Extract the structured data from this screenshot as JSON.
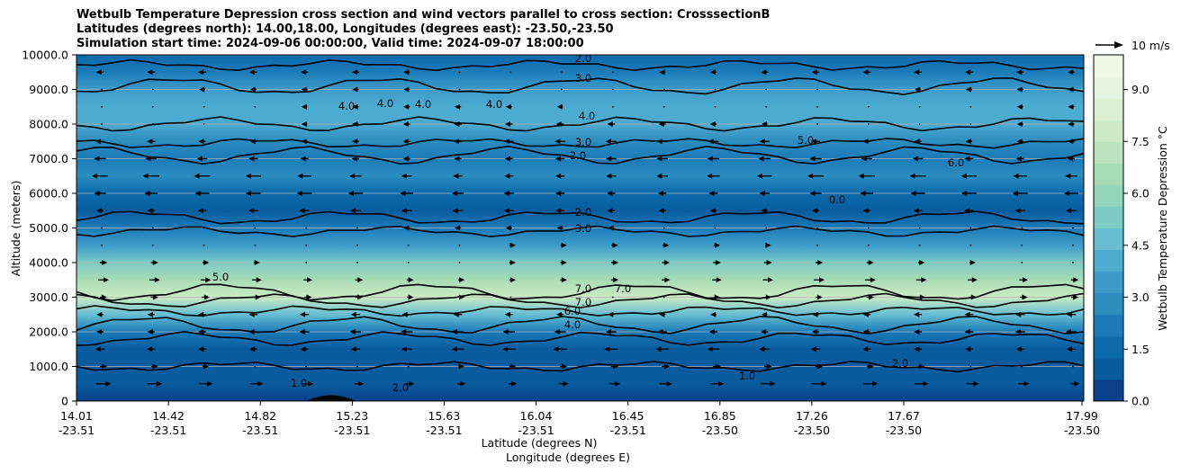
{
  "chart_data": {
    "type": "contour",
    "title_lines": [
      "Wetbulb Temperature Depression cross section and wind vectors parallel to cross section: CrosssectionB",
      "Latitudes (degrees north): 14.00,18.00, Longitudes (degrees east): -23.50,-23.50",
      "Simulation start time: 2024-09-06 00:00:00, Valid time: 2024-09-07 18:00:00"
    ],
    "ylabel": "Altitude (meters)",
    "xlabel_lat": "Latitude (degrees N)",
    "xlabel_lon": "Longitude (degrees E)",
    "ylim": [
      0,
      10000
    ],
    "yticks": [
      "0",
      "1000.0",
      "2000.0",
      "3000.0",
      "4000.0",
      "5000.0",
      "6000.0",
      "7000.0",
      "8000.0",
      "9000.0",
      "10000.0"
    ],
    "xticks_lat": [
      "14.01",
      "14.42",
      "14.82",
      "15.23",
      "15.63",
      "16.04",
      "16.45",
      "16.85",
      "17.26",
      "17.67",
      "17.99"
    ],
    "xticks_lon": [
      "-23.51",
      "-23.51",
      "-23.51",
      "-23.51",
      "-23.51",
      "-23.51",
      "-23.51",
      "-23.50",
      "-23.50",
      "-23.50",
      "-23.50"
    ],
    "colorbar": {
      "label": "Wetbulb Temperature Depression °C",
      "ticks": [
        "0.0",
        "1.5",
        "3.0",
        "4.5",
        "6.0",
        "7.5",
        "9.0"
      ],
      "range": [
        0,
        10
      ],
      "colors": [
        "#08408a",
        "#085c9e",
        "#0b6aab",
        "#1b7bb8",
        "#2b8cbe",
        "#3d9bc8",
        "#4eabd0",
        "#67bdd2",
        "#7ccbc4",
        "#92d4bc",
        "#a8dcb5",
        "#bae4bc",
        "#cbebc5",
        "#d9f0d3",
        "#e6f5e1",
        "#f0f9e8"
      ]
    },
    "wind_key_label": "10 m/s",
    "depression_profile": [
      {
        "alt": 0,
        "value": 0.5
      },
      {
        "alt": 500,
        "value": 0.9
      },
      {
        "alt": 1000,
        "value": 1.2
      },
      {
        "alt": 1500,
        "value": 1.0
      },
      {
        "alt": 2000,
        "value": 2.0
      },
      {
        "alt": 2500,
        "value": 4.5
      },
      {
        "alt": 3000,
        "value": 7.5
      },
      {
        "alt": 3500,
        "value": 6.5
      },
      {
        "alt": 4000,
        "value": 5.0
      },
      {
        "alt": 4500,
        "value": 3.5
      },
      {
        "alt": 5000,
        "value": 2.0
      },
      {
        "alt": 5500,
        "value": 1.2
      },
      {
        "alt": 6000,
        "value": 1.8
      },
      {
        "alt": 6500,
        "value": 2.5
      },
      {
        "alt": 7000,
        "value": 2.2
      },
      {
        "alt": 7500,
        "value": 3.0
      },
      {
        "alt": 8000,
        "value": 3.8
      },
      {
        "alt": 8500,
        "value": 4.2
      },
      {
        "alt": 9000,
        "value": 3.2
      },
      {
        "alt": 9500,
        "value": 2.4
      },
      {
        "alt": 10000,
        "value": 1.8
      }
    ],
    "contour_levels": [
      {
        "label": "1.0",
        "alt": 1000
      },
      {
        "label": "2.0",
        "alt": 1800
      },
      {
        "label": "4.0",
        "alt": 2200
      },
      {
        "label": "6.0",
        "alt": 2600
      },
      {
        "label": "7.0",
        "alt": 2900
      },
      {
        "label": "7.0",
        "alt": 3150
      },
      {
        "label": "3.0",
        "alt": 4900
      },
      {
        "label": "2.0",
        "alt": 5300
      },
      {
        "label": "2.0",
        "alt": 7100
      },
      {
        "label": "3.0",
        "alt": 7450
      },
      {
        "label": "4.0",
        "alt": 8000
      },
      {
        "label": "3.0",
        "alt": 9100
      },
      {
        "label": "2.0",
        "alt": 9700
      }
    ],
    "contour_label_texts": [
      "1.0",
      "2.0",
      "4.0",
      "6.0",
      "7.0",
      "7.0",
      "7.0",
      "3.0",
      "2.0",
      "2.0",
      "3.0",
      "4.0",
      "5.0",
      "6.0",
      "3.0",
      "2.0",
      "4.0",
      "4.0",
      "4.0",
      "4.0",
      "5.0",
      "1.0",
      "2.0",
      "0.0"
    ],
    "wind_rows": [
      {
        "alt": 500,
        "u": 8
      },
      {
        "alt": 1000,
        "u": 3
      },
      {
        "alt": 1500,
        "u": -7
      },
      {
        "alt": 2000,
        "u": -6
      },
      {
        "alt": 2500,
        "u": -4
      },
      {
        "alt": 3000,
        "u": 3
      },
      {
        "alt": 3500,
        "u": 5
      },
      {
        "alt": 4000,
        "u": 3
      },
      {
        "alt": 4500,
        "u": 2
      },
      {
        "alt": 5000,
        "u": -2
      },
      {
        "alt": 5500,
        "u": -5
      },
      {
        "alt": 6000,
        "u": -8
      },
      {
        "alt": 6500,
        "u": -9
      },
      {
        "alt": 7000,
        "u": -6
      },
      {
        "alt": 7500,
        "u": -5
      },
      {
        "alt": 8000,
        "u": -3
      },
      {
        "alt": 8500,
        "u": -2
      },
      {
        "alt": 9000,
        "u": -2
      },
      {
        "alt": 9500,
        "u": -3
      }
    ]
  }
}
